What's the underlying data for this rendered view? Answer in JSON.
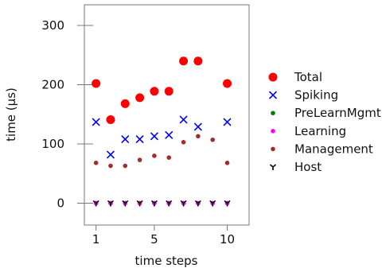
{
  "chart_data": {
    "type": "scatter",
    "title": "",
    "xlabel": "time steps",
    "ylabel": "time (µs)",
    "xlim": [
      0.2,
      11.5
    ],
    "ylim": [
      -37,
      335
    ],
    "x_ticks": [
      1,
      5,
      10
    ],
    "x_tick_labels": [
      "1",
      "5",
      "10"
    ],
    "y_ticks": [
      0,
      100,
      200,
      300
    ],
    "y_tick_labels": [
      "0",
      "100",
      "200",
      "300"
    ],
    "x": [
      1,
      2,
      3,
      4,
      5,
      6,
      7,
      8,
      9,
      10
    ],
    "grid": false,
    "legend_position": "right",
    "series": [
      {
        "name": "Total",
        "marker": "circle-large",
        "color": "#ff0000",
        "values": [
          202,
          141,
          168,
          178,
          189,
          189,
          240,
          240,
          null,
          202
        ]
      },
      {
        "name": "Spiking",
        "marker": "x",
        "color": "#0000ff",
        "values": [
          137,
          82,
          108,
          108,
          113,
          115,
          141,
          129,
          null,
          137
        ]
      },
      {
        "name": "PreLearnMgmt",
        "marker": "circle-small",
        "color": "#008000",
        "values": [
          0,
          0,
          0,
          0,
          0,
          0,
          0,
          0,
          0,
          0
        ]
      },
      {
        "name": "Learning",
        "marker": "circle-small",
        "color": "#ff00ff",
        "values": [
          0,
          0,
          0,
          0,
          0,
          0,
          0,
          0,
          0,
          0
        ]
      },
      {
        "name": "Management",
        "marker": "circle-small",
        "color": "#a52a2a",
        "values": [
          68,
          63,
          63,
          73,
          80,
          77,
          103,
          113,
          107,
          68
        ]
      },
      {
        "name": "Host",
        "marker": "tri-down",
        "color": "#000000",
        "values": [
          0,
          0,
          0,
          0,
          0,
          0,
          0,
          0,
          0,
          0
        ]
      }
    ]
  }
}
